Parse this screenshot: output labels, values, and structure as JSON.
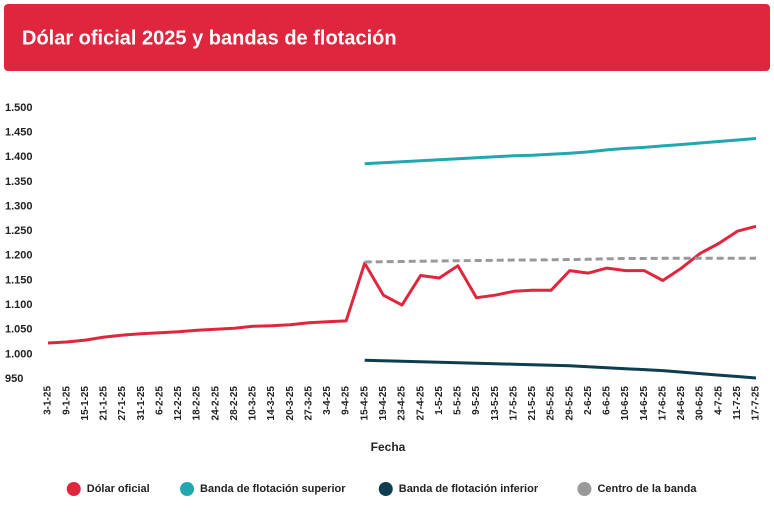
{
  "chart_data": {
    "type": "line",
    "title": "Dólar oficial 2025 y bandas de flotación",
    "x_label": "Fecha",
    "categories": [
      "3-1-25",
      "9-1-25",
      "15-1-25",
      "21-1-25",
      "27-1-25",
      "31-1-25",
      "6-2-25",
      "12-2-25",
      "18-2-25",
      "24-2-25",
      "28-2-25",
      "10-3-25",
      "14-3-25",
      "20-3-25",
      "27-3-25",
      "3-4-25",
      "9-4-25",
      "15-4-25",
      "19-4-25",
      "23-4-25",
      "27-4-25",
      "1-5-25",
      "5-5-25",
      "9-5-25",
      "13-5-25",
      "17-5-25",
      "21-5-25",
      "25-5-25",
      "29-5-25",
      "2-6-25",
      "6-6-25",
      "10-6-25",
      "14-6-25",
      "17-6-25",
      "24-6-25",
      "30-6-25",
      "4-7-25",
      "11-7-25",
      "17-7-25"
    ],
    "series": [
      {
        "name": "Dólar oficial",
        "color": "#e0263f",
        "dashed": false,
        "values": [
          1023,
          1025,
          1029,
          1035,
          1039,
          1042,
          1044,
          1046,
          1049,
          1051,
          1053,
          1057,
          1058,
          1060,
          1064,
          1066,
          1068,
          1185,
          1120,
          1100,
          1160,
          1155,
          1180,
          1115,
          1120,
          1128,
          1130,
          1130,
          1170,
          1165,
          1175,
          1170,
          1170,
          1150,
          1175,
          1205,
          1225,
          1250,
          1260
        ]
      },
      {
        "name": "Banda de flotación superior",
        "color": "#22a7b0",
        "dashed": false,
        "values": [
          null,
          null,
          null,
          null,
          null,
          null,
          null,
          null,
          null,
          null,
          null,
          null,
          null,
          null,
          null,
          null,
          null,
          1387,
          1389,
          1391,
          1393,
          1395,
          1397,
          1399,
          1401,
          1403,
          1404,
          1406,
          1408,
          1411,
          1415,
          1418,
          1420,
          1423,
          1426,
          1429,
          1432,
          1435,
          1438
        ]
      },
      {
        "name": "Banda de flotación inferior",
        "color": "#0d3d4f",
        "dashed": false,
        "values": [
          null,
          null,
          null,
          null,
          null,
          null,
          null,
          null,
          null,
          null,
          null,
          null,
          null,
          null,
          null,
          null,
          null,
          988,
          987,
          986,
          985,
          984,
          983,
          982,
          981,
          980,
          979,
          978,
          977,
          975,
          973,
          971,
          969,
          967,
          964,
          961,
          958,
          955,
          952
        ]
      },
      {
        "name": "Centro de la banda",
        "color": "#999999",
        "dashed": true,
        "values": [
          null,
          null,
          null,
          null,
          null,
          null,
          null,
          null,
          null,
          null,
          null,
          null,
          null,
          null,
          null,
          null,
          null,
          1187.5,
          1188,
          1188.5,
          1189,
          1189.5,
          1190,
          1190.5,
          1191,
          1191.5,
          1191.5,
          1192,
          1192.5,
          1193,
          1194,
          1194.5,
          1194.5,
          1195,
          1195,
          1195,
          1195,
          1195,
          1195
        ]
      }
    ],
    "ylim": [
      950,
      1500
    ],
    "yticks": [
      950,
      {
        "value": 1000,
        "label": "1.000"
      },
      {
        "value": 1050,
        "label": "1.050"
      },
      {
        "value": 1100,
        "label": "1.100"
      },
      {
        "value": 1150,
        "label": "1.150"
      },
      {
        "value": 1200,
        "label": "1.200"
      },
      {
        "value": 1250,
        "label": "1.250"
      },
      {
        "value": 1300,
        "label": "1.300"
      },
      {
        "value": 1350,
        "label": "1.350"
      },
      {
        "value": 1400,
        "label": "1.400"
      },
      {
        "value": 1450,
        "label": "1.450"
      },
      {
        "value": 1500,
        "label": "1.500"
      }
    ],
    "grid": false,
    "legend": "bottom"
  }
}
